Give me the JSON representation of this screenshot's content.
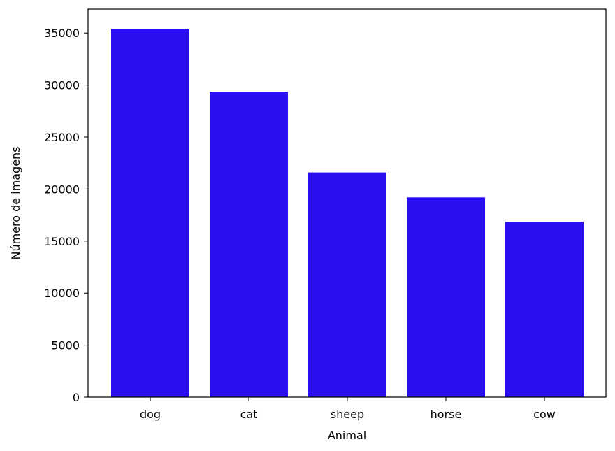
{
  "chart_data": {
    "type": "bar",
    "title": "",
    "xlabel": "Animal",
    "ylabel": "Número de imagens",
    "categories": [
      "dog",
      "cat",
      "sheep",
      "horse",
      "cow"
    ],
    "values": [
      35400,
      29350,
      21600,
      19200,
      16850
    ],
    "ylim": [
      0,
      37300
    ],
    "yticks": [
      0,
      5000,
      10000,
      15000,
      20000,
      25000,
      30000,
      35000
    ],
    "ytick_labels": [
      "0",
      "5000",
      "10000",
      "15000",
      "20000",
      "25000",
      "30000",
      "35000"
    ],
    "bar_color": "#2a10f0",
    "grid": false,
    "legend": "none"
  }
}
